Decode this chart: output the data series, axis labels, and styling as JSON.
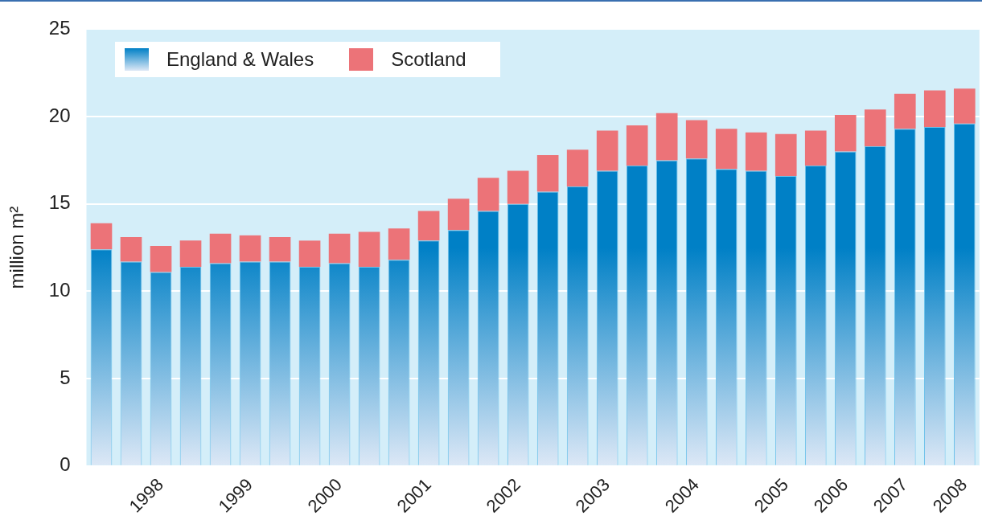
{
  "chart_data": {
    "type": "bar",
    "stacked": true,
    "ylabel": "million m²",
    "categories": [
      null,
      null,
      "1998",
      null,
      null,
      "1999",
      null,
      null,
      "2000",
      null,
      null,
      "2001",
      null,
      null,
      "2002",
      null,
      null,
      "2003",
      null,
      null,
      "2004",
      null,
      null,
      "2005",
      null,
      "2006",
      null,
      "2007",
      null,
      "2008"
    ],
    "series": [
      {
        "name": "England & Wales",
        "color": "#0080c6",
        "values": [
          12.4,
          11.7,
          11.1,
          11.4,
          11.6,
          11.7,
          11.7,
          11.4,
          11.6,
          11.4,
          11.8,
          12.9,
          13.5,
          14.6,
          15.0,
          15.7,
          16.0,
          16.9,
          17.2,
          17.5,
          17.6,
          17.0,
          16.9,
          16.6,
          17.2,
          18.0,
          18.3,
          19.3,
          19.4,
          19.6
        ]
      },
      {
        "name": "Scotland",
        "color": "#ec7378",
        "values": [
          1.5,
          1.4,
          1.5,
          1.5,
          1.7,
          1.5,
          1.4,
          1.5,
          1.7,
          2.0,
          1.8,
          1.7,
          1.8,
          1.9,
          1.9,
          2.1,
          2.1,
          2.3,
          2.3,
          2.7,
          2.2,
          2.3,
          2.2,
          2.4,
          2.0,
          2.1,
          2.1,
          2.0,
          2.1,
          2.0
        ]
      }
    ],
    "ylim": [
      0,
      25
    ],
    "yticks": [
      0,
      5,
      10,
      15,
      20,
      25
    ],
    "grid": "y",
    "legend": "top left"
  }
}
